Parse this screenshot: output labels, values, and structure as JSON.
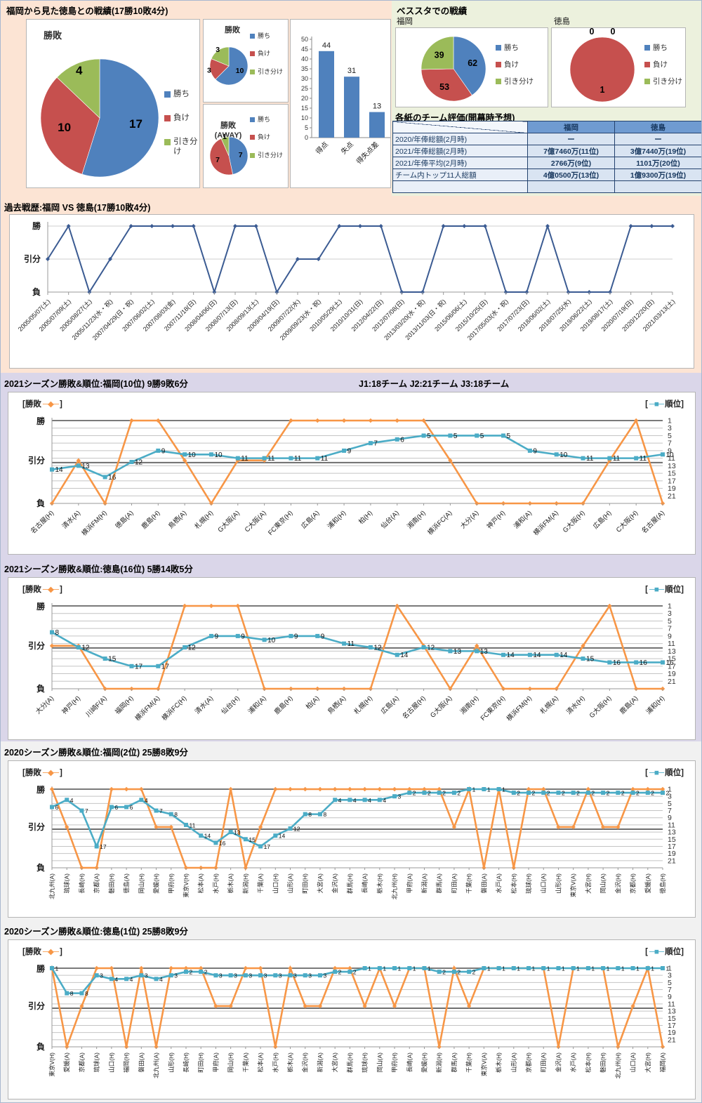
{
  "colors": {
    "win_blue": "#4f81bd",
    "lose_red": "#c6504e",
    "draw_green": "#9bbb59",
    "orange": "#f79646",
    "teal": "#4bacc6",
    "navy": "#3b5b92"
  },
  "icons": {
    "results_marker": "─◆─",
    "rank_marker": "─■─"
  },
  "legend": {
    "results_open": "[勝敗",
    "results_close": "]",
    "rank_open": "[",
    "rank_close": "順位]"
  },
  "sections": {
    "head_to_head": {
      "title": "福岡から見た徳島との戦績(17勝10敗4分)"
    },
    "besta": {
      "title": "ベススタでの戦績",
      "fukuoka": "福岡",
      "tokushima": "徳島"
    },
    "rating": {
      "title": "各紙のチーム評価(開幕時予想)",
      "columns": [
        "福岡",
        "徳島"
      ],
      "rows": [
        {
          "label": "2020/年俸総額(2月時)",
          "fukuoka": "ー",
          "tokushima": "ー"
        },
        {
          "label": "2021/年俸総額(2月時)",
          "fukuoka": "7億7460万(11位)",
          "tokushima": "3億7440万(19位)"
        },
        {
          "label": "2021/年俸平均(2月時)",
          "fukuoka": "2766万(9位)",
          "tokushima": "1101万(20位)"
        },
        {
          "label": "チーム内トップ11人総額",
          "fukuoka": "4億0500万(13位)",
          "tokushima": "1億9300万(19位)"
        },
        {
          "label": "",
          "fukuoka": "",
          "tokushima": ""
        }
      ]
    },
    "history": {
      "title": "過去戦歴:福岡 VS 徳島(17勝10敗4分)"
    },
    "season_2021_fukuoka": {
      "title": "2021シーズン勝敗&順位:福岡(10位) 9勝9敗6分",
      "note": "J1:18チーム  J2:21チーム  J3:18チーム"
    },
    "season_2021_tokushima": {
      "title": "2021シーズン勝敗&順位:徳島(16位) 5勝14敗5分"
    },
    "season_2020_fukuoka": {
      "title": "2020シーズン勝敗&順位:福岡(2位) 25勝8敗9分"
    },
    "season_2020_tokushima": {
      "title": "2020シーズン勝敗&順位:徳島(1位) 25勝8敗9分"
    }
  },
  "chart_data": [
    {
      "id": "pie_overall",
      "type": "pie",
      "title": "勝敗",
      "labels": [
        "勝ち",
        "負け",
        "引き分け"
      ],
      "values": [
        17,
        10,
        4
      ]
    },
    {
      "id": "pie_home",
      "type": "pie",
      "title": "勝敗",
      "labels": [
        "勝ち",
        "負け",
        "引き分け"
      ],
      "values": [
        10,
        3,
        3
      ]
    },
    {
      "id": "pie_away",
      "type": "pie",
      "title": "勝敗(AWAY)",
      "labels": [
        "勝ち",
        "負け",
        "引き分け"
      ],
      "values": [
        7,
        7,
        1
      ]
    },
    {
      "id": "bar_goals",
      "type": "bar",
      "categories": [
        "得点",
        "失点",
        "得失点差"
      ],
      "values": [
        44,
        31,
        13
      ],
      "ylim": [
        0,
        50
      ],
      "ytick_step": 5
    },
    {
      "id": "pie_besta_fukuoka",
      "type": "pie",
      "title": "福岡",
      "labels": [
        "勝ち",
        "負け",
        "引き分け"
      ],
      "values": [
        62,
        53,
        39
      ]
    },
    {
      "id": "pie_besta_tokushima",
      "type": "pie",
      "title": "徳島",
      "labels": [
        "勝ち",
        "負け",
        "引き分け"
      ],
      "values": [
        0,
        1,
        0
      ]
    },
    {
      "id": "history_line",
      "type": "line",
      "title": "過去戦歴:福岡 VS 徳島(17勝10敗4分)",
      "y_labels": [
        "勝",
        "引分",
        "負"
      ],
      "x": [
        "2005/05/07(土)",
        "2005/07/09(土)",
        "2005/08/27(土)",
        "2005/11/23(水・祝)",
        "2007/04/29(日・祝)",
        "2007/06/02(土)",
        "2007/08/03(金)",
        "2007/11/18(日)",
        "2008/04/06(日)",
        "2008/07/13(日)",
        "2008/09/13(土)",
        "2009/04/19(日)",
        "2009/07/22(水)",
        "2009/09/23(水・祝)",
        "2010/05/29(土)",
        "2010/10/31(日)",
        "2012/04/22(日)",
        "2012/07/08(日)",
        "2013/03/20(水・祝)",
        "2013/11/03(日・祝)",
        "2015/06/06(土)",
        "2015/10/25(日)",
        "2017/05/03(水・祝)",
        "2017/07/23(日)",
        "2018/06/02(土)",
        "2018/07/25(水)",
        "2019/06/22(土)",
        "2019/08/17(土)",
        "2020/07/19(日)",
        "2020/12/20(日)",
        "2021/03/13(土)"
      ],
      "results": [
        "引分",
        "勝",
        "負",
        "引分",
        "勝",
        "勝",
        "勝",
        "勝",
        "負",
        "勝",
        "勝",
        "負",
        "引分",
        "引分",
        "勝",
        "勝",
        "勝",
        "負",
        "負",
        "勝",
        "勝",
        "勝",
        "負",
        "負",
        "勝",
        "負",
        "負",
        "負",
        "勝",
        "勝",
        "勝"
      ]
    },
    {
      "id": "season_2021_fukuoka",
      "type": "line",
      "title": "2021シーズン勝敗&順位:福岡(10位) 9勝9敗6分",
      "y_labels": [
        "勝",
        "引分",
        "負"
      ],
      "rank_axis": [
        1,
        3,
        5,
        7,
        9,
        11,
        13,
        15,
        17,
        19,
        21
      ],
      "x": [
        "名古屋(H)",
        "清水(A)",
        "横浜FM(H)",
        "徳島(A)",
        "鹿島(H)",
        "鳥栖(A)",
        "札幌(H)",
        "G大阪(A)",
        "C大阪(A)",
        "FC東京(H)",
        "広島(A)",
        "浦和(H)",
        "柏(H)",
        "仙台(A)",
        "湘南(H)",
        "横浜FC(A)",
        "大分(A)",
        "神戸(H)",
        "浦和(A)",
        "横浜FM(A)",
        "G大阪(H)",
        "広島(H)",
        "C大阪(H)",
        "名古屋(A)"
      ],
      "results": [
        "負",
        "引分",
        "負",
        "勝",
        "勝",
        "引分",
        "負",
        "引分",
        "引分",
        "勝",
        "勝",
        "勝",
        "勝",
        "勝",
        "勝",
        "引分",
        "負",
        "負",
        "負",
        "負",
        "負",
        "引分",
        "勝",
        "負"
      ],
      "ranks": [
        14,
        13,
        16,
        12,
        9,
        10,
        10,
        11,
        11,
        11,
        11,
        9,
        7,
        6,
        5,
        5,
        5,
        5,
        9,
        10,
        11,
        11,
        11,
        10
      ]
    },
    {
      "id": "season_2021_tokushima",
      "type": "line",
      "title": "2021シーズン勝敗&順位:徳島(16位) 5勝14敗5分",
      "y_labels": [
        "勝",
        "引分",
        "負"
      ],
      "rank_axis": [
        1,
        3,
        5,
        7,
        9,
        11,
        13,
        15,
        17,
        19,
        21
      ],
      "x": [
        "大分(A)",
        "神戸(H)",
        "川崎F(A)",
        "福岡(H)",
        "横浜FM(A)",
        "横浜FC(H)",
        "清水(A)",
        "仙台(H)",
        "浦和(A)",
        "鹿島(H)",
        "柏(A)",
        "鳥栖(A)",
        "札幌(H)",
        "広島(A)",
        "名古屋(H)",
        "G大阪(A)",
        "湘南(H)",
        "FC東京(H)",
        "横浜FM(H)",
        "札幌(A)",
        "清水(H)",
        "G大阪(H)",
        "鹿島(A)",
        "浦和(H)"
      ],
      "results": [
        "引分",
        "引分",
        "負",
        "負",
        "負",
        "勝",
        "勝",
        "勝",
        "負",
        "負",
        "負",
        "負",
        "負",
        "勝",
        "引分",
        "負",
        "引分",
        "負",
        "負",
        "負",
        "引分",
        "勝",
        "負",
        "負"
      ],
      "ranks": [
        8,
        12,
        15,
        17,
        17,
        12,
        9,
        9,
        10,
        9,
        9,
        11,
        12,
        14,
        12,
        13,
        13,
        14,
        14,
        14,
        15,
        16,
        16,
        16
      ]
    },
    {
      "id": "season_2020_fukuoka",
      "type": "line",
      "title": "2020シーズン勝敗&順位:福岡(2位) 25勝8敗9分",
      "y_labels": [
        "勝",
        "引分",
        "負"
      ],
      "rank_axis": [
        1,
        3,
        5,
        7,
        9,
        11,
        13,
        15,
        17,
        19,
        21
      ],
      "x": [
        "北九州(A)",
        "琉球(A)",
        "長崎(H)",
        "京都(A)",
        "磐田(H)",
        "徳島(A)",
        "岡山(H)",
        "愛媛(H)",
        "甲府(H)",
        "東京V(H)",
        "松本(A)",
        "水戸(H)",
        "栃木(A)",
        "新潟(H)",
        "千葉(A)",
        "山口(H)",
        "山形(A)",
        "町田(H)",
        "大宮(A)",
        "金沢(A)",
        "群馬(H)",
        "長崎(A)",
        "栃木(H)",
        "北九州(H)",
        "甲府(A)",
        "新潟(A)",
        "群馬(A)",
        "町田(A)",
        "千葉(H)",
        "磐田(A)",
        "水戸(A)",
        "松本(H)",
        "琉球(H)",
        "山口(A)",
        "山形(H)",
        "東京V(A)",
        "大宮(H)",
        "岡山(A)",
        "金沢(H)",
        "京都(H)",
        "愛媛(A)",
        "徳島(H)"
      ],
      "results": [
        "勝",
        "引分",
        "負",
        "負",
        "勝",
        "勝",
        "勝",
        "引分",
        "引分",
        "負",
        "負",
        "負",
        "勝",
        "負",
        "引分",
        "勝",
        "勝",
        "勝",
        "勝",
        "勝",
        "勝",
        "勝",
        "勝",
        "勝",
        "勝",
        "勝",
        "勝",
        "引分",
        "勝",
        "負",
        "勝",
        "負",
        "勝",
        "勝",
        "引分",
        "引分",
        "勝",
        "引分",
        "引分",
        "勝",
        "勝",
        "勝"
      ],
      "ranks": [
        6,
        4,
        7,
        17,
        6,
        6,
        4,
        7,
        8,
        11,
        14,
        16,
        13,
        15,
        17,
        14,
        12,
        8,
        8,
        4,
        4,
        4,
        4,
        3,
        2,
        2,
        2,
        2,
        1,
        1,
        1,
        2,
        2,
        2,
        2,
        2,
        2,
        2,
        2,
        2,
        2,
        2
      ]
    },
    {
      "id": "season_2020_tokushima",
      "type": "line",
      "title": "2020シーズン勝敗&順位:徳島(1位) 25勝8敗9分",
      "y_labels": [
        "勝",
        "引分",
        "負"
      ],
      "rank_axis": [
        1,
        3,
        5,
        7,
        9,
        11,
        13,
        15,
        17,
        19,
        21
      ],
      "x": [
        "東京V(H)",
        "愛媛(A)",
        "京都(A)",
        "琉球(A)",
        "山口(H)",
        "福岡(H)",
        "磐田(A)",
        "北九州(A)",
        "山形(H)",
        "長崎(H)",
        "町田(H)",
        "甲府(A)",
        "岡山(H)",
        "千葉(A)",
        "松本(A)",
        "水戸(H)",
        "栃木(A)",
        "金沢(H)",
        "新潟(A)",
        "大宮(A)",
        "群馬(H)",
        "琉球(H)",
        "岡山(A)",
        "甲府(H)",
        "長崎(A)",
        "愛媛(H)",
        "新潟(H)",
        "群馬(A)",
        "千葉(H)",
        "東京V(A)",
        "栃木(H)",
        "山形(A)",
        "京都(H)",
        "町田(A)",
        "金沢(A)",
        "水戸(A)",
        "松本(H)",
        "磐田(H)",
        "北九州(H)",
        "山口(A)",
        "大宮(H)",
        "福岡(A)"
      ],
      "results": [
        "勝",
        "負",
        "引分",
        "勝",
        "勝",
        "負",
        "勝",
        "負",
        "勝",
        "勝",
        "勝",
        "引分",
        "引分",
        "勝",
        "勝",
        "負",
        "勝",
        "引分",
        "引分",
        "勝",
        "勝",
        "引分",
        "勝",
        "引分",
        "勝",
        "勝",
        "負",
        "勝",
        "引分",
        "勝",
        "勝",
        "勝",
        "勝",
        "勝",
        "負",
        "勝",
        "勝",
        "勝",
        "負",
        "引分",
        "勝",
        "負"
      ],
      "ranks": [
        1,
        8,
        8,
        3,
        4,
        4,
        3,
        4,
        3,
        2,
        2,
        3,
        3,
        3,
        3,
        3,
        3,
        3,
        3,
        2,
        2,
        1,
        1,
        1,
        1,
        1,
        2,
        2,
        2,
        1,
        1,
        1,
        1,
        1,
        1,
        1,
        1,
        1,
        1,
        1,
        1,
        1
      ]
    }
  ]
}
